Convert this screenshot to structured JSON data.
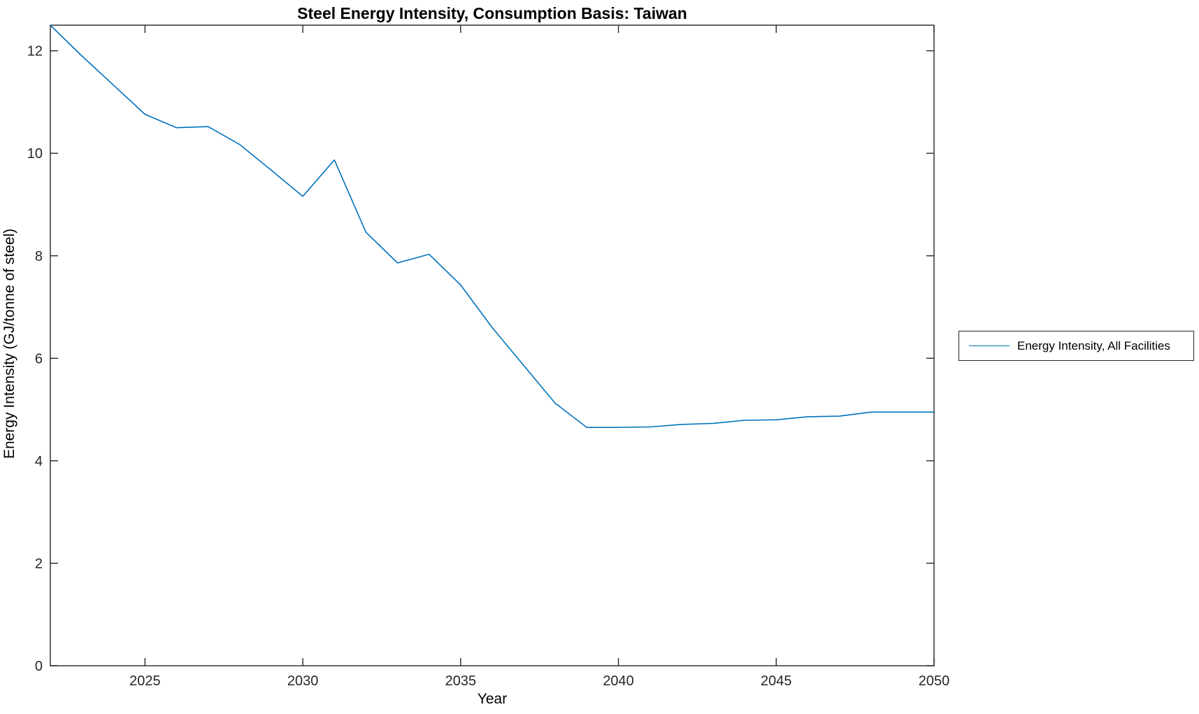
{
  "chart_data": {
    "type": "line",
    "title": "Steel Energy Intensity, Consumption Basis: Taiwan",
    "xlabel": "Year",
    "ylabel": "Energy Intensity (GJ/tonne of steel)",
    "xlim": [
      2022,
      2050
    ],
    "ylim": [
      0,
      12.5
    ],
    "xticks": [
      2025,
      2030,
      2035,
      2040,
      2045,
      2050
    ],
    "yticks": [
      0,
      2,
      4,
      6,
      8,
      10,
      12
    ],
    "grid": false,
    "box": true,
    "x": [
      2022,
      2023,
      2024,
      2025,
      2026,
      2027,
      2028,
      2029,
      2030,
      2031,
      2032,
      2033,
      2034,
      2035,
      2036,
      2037,
      2038,
      2039,
      2040,
      2041,
      2042,
      2043,
      2044,
      2045,
      2046,
      2047,
      2048,
      2049,
      2050
    ],
    "series": [
      {
        "name": "Energy Intensity, All Facilities",
        "color": "#0072BD",
        "values": [
          12.5,
          11.9,
          11.33,
          10.76,
          10.5,
          10.52,
          10.17,
          9.67,
          9.16,
          9.87,
          8.46,
          7.86,
          8.03,
          7.43,
          6.6,
          5.86,
          5.12,
          4.65,
          4.65,
          4.66,
          4.71,
          4.73,
          4.79,
          4.8,
          4.86,
          4.87,
          4.95,
          4.95,
          4.95
        ]
      }
    ],
    "legend": {
      "position": "right-outside",
      "entries": [
        "Energy Intensity, All Facilities"
      ]
    },
    "colors": {
      "line": "#0072BD",
      "axis": "#262626",
      "tick_label": "#262626",
      "title": "#000000",
      "background": "#ffffff"
    }
  }
}
